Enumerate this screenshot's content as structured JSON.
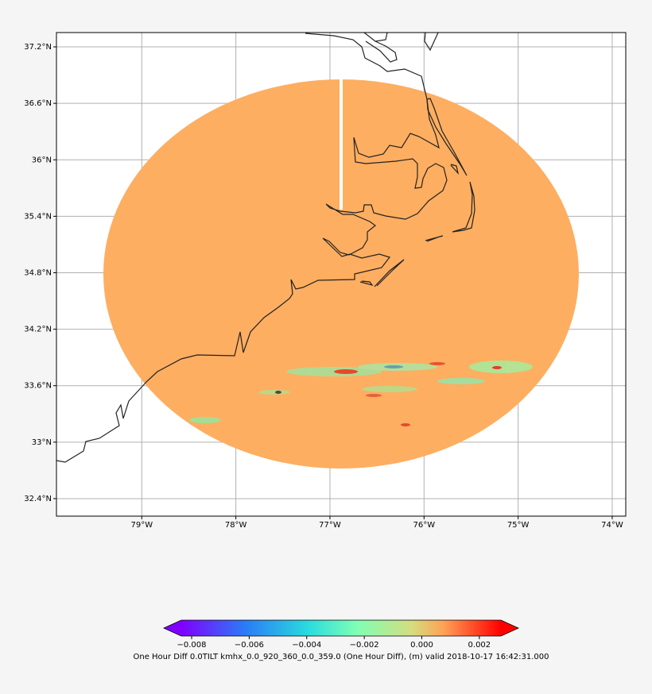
{
  "chart_data": {
    "type": "map",
    "xlim": [
      -79.907,
      -73.856
    ],
    "ylim": [
      32.214,
      37.352
    ],
    "xticks": [
      {
        "value": -79,
        "label": "79°W"
      },
      {
        "value": -78,
        "label": "78°W"
      },
      {
        "value": -77,
        "label": "77°W"
      },
      {
        "value": -76,
        "label": "76°W"
      },
      {
        "value": -75,
        "label": "75°W"
      },
      {
        "value": -74,
        "label": "74°W"
      }
    ],
    "yticks": [
      {
        "value": 32.4,
        "label": "32.4°N"
      },
      {
        "value": 33,
        "label": "33°N"
      },
      {
        "value": 33.6,
        "label": "33.6°N"
      },
      {
        "value": 34.2,
        "label": "34.2°N"
      },
      {
        "value": 34.8,
        "label": "34.8°N"
      },
      {
        "value": 35.4,
        "label": "35.4°N"
      },
      {
        "value": 36,
        "label": "36°N"
      },
      {
        "value": 36.6,
        "label": "36.6°N"
      },
      {
        "value": 37.2,
        "label": "37.2°N"
      }
    ],
    "grid": true,
    "colorbar": {
      "label": "One Hour Diff 0.0TILT kmhx_0.0_920_360_0.0_359.0 (One Hour Diff), (m) valid 2018-10-17 16:42:31.000",
      "clim": [
        -0.00836,
        0.00275
      ],
      "ticks": [
        {
          "value": -0.008,
          "label": "−0.008"
        },
        {
          "value": -0.006,
          "label": "−0.006"
        },
        {
          "value": -0.004,
          "label": "−0.004"
        },
        {
          "value": -0.002,
          "label": "−0.002"
        },
        {
          "value": 0,
          "label": "0.000"
        },
        {
          "value": 0.002,
          "label": "0.002"
        }
      ]
    }
  }
}
